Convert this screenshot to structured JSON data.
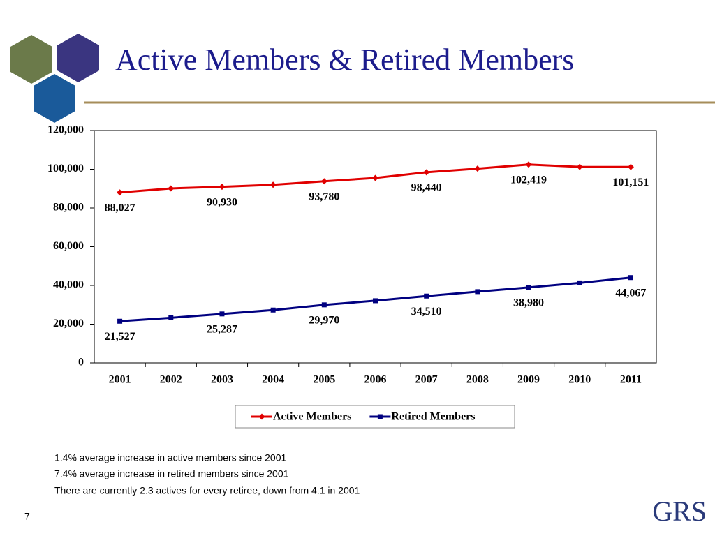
{
  "chart_data": {
    "type": "line",
    "title": "Active Members & Retired Members",
    "categories": [
      "2001",
      "2002",
      "2003",
      "2004",
      "2005",
      "2006",
      "2007",
      "2008",
      "2009",
      "2010",
      "2011"
    ],
    "series": [
      {
        "name": "Active Members",
        "color": "#e00000",
        "marker": "diamond",
        "values": [
          88027,
          90100,
          90930,
          92000,
          93780,
          95500,
          98440,
          100300,
          102419,
          101200,
          101151
        ],
        "value_labels": [
          "88,027",
          null,
          "90,930",
          null,
          "93,780",
          null,
          "98,440",
          null,
          "102,419",
          null,
          "101,151"
        ]
      },
      {
        "name": "Retired Members",
        "color": "#000080",
        "marker": "square",
        "values": [
          21527,
          23300,
          25287,
          27300,
          29970,
          32100,
          34510,
          36800,
          38980,
          41300,
          44067
        ],
        "value_labels": [
          "21,527",
          null,
          "25,287",
          null,
          "29,970",
          null,
          "34,510",
          null,
          "38,980",
          null,
          "44,067"
        ]
      }
    ],
    "ylim": [
      0,
      120000
    ],
    "yticks": [
      0,
      {
        "value": 20000,
        "label": "20,000"
      },
      {
        "value": 40000,
        "label": "40,000"
      },
      {
        "value": 60000,
        "label": "60,000"
      },
      {
        "value": 80000,
        "label": "80,000"
      },
      {
        "value": 100000,
        "label": "100,000"
      },
      {
        "value": 120000,
        "label": "120,000"
      }
    ],
    "grid": false,
    "legend": "bottom"
  },
  "notes": [
    "1.4% average increase in active members since 2001",
    "7.4% average increase in retired members since 2001",
    "There are currently 2.3 actives for every retiree, down from 4.1 in 2001"
  ],
  "page_number": "7",
  "logo": "GRS"
}
